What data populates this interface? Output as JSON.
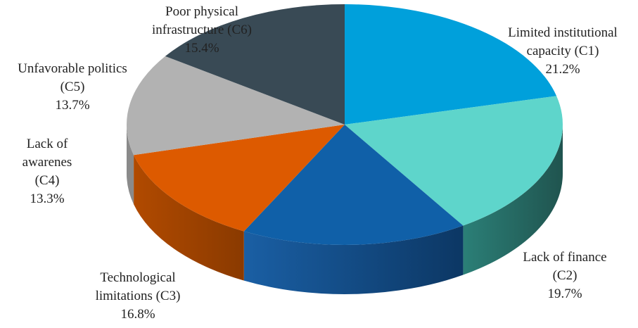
{
  "chart_data": {
    "type": "pie",
    "style": "3d",
    "categories": [
      "Limited institutional capacity (C1)",
      "Lack of finance (C2)",
      "Technological limitations (C3)",
      "Lack of awarenes (C4)",
      "Unfavorable politics (C5)",
      "Poor physical infrastructure (C6)"
    ],
    "values": [
      21.2,
      19.7,
      16.8,
      13.3,
      13.7,
      15.4
    ],
    "colors": [
      "#00a0db",
      "#5ed5cb",
      "#1060a8",
      "#dd5a00",
      "#b2b2b2",
      "#394a55"
    ],
    "title": "",
    "legend": "none",
    "data_labels": [
      {
        "lines": [
          "Limited institutional",
          "capacity (C1)"
        ],
        "percent": "21.2%"
      },
      {
        "lines": [
          "Lack of finance",
          "(C2)"
        ],
        "percent": "19.7%"
      },
      {
        "lines": [
          "Technological",
          "limitations (C3)"
        ],
        "percent": "16.8%"
      },
      {
        "lines": [
          "Lack of",
          "awarenes",
          "(C4)"
        ],
        "percent": "13.3%"
      },
      {
        "lines": [
          "Unfavorable politics",
          "(C5)"
        ],
        "percent": "13.7%"
      },
      {
        "lines": [
          "Poor physical",
          "infrastructure (C6)"
        ],
        "percent": "15.4%"
      }
    ]
  }
}
